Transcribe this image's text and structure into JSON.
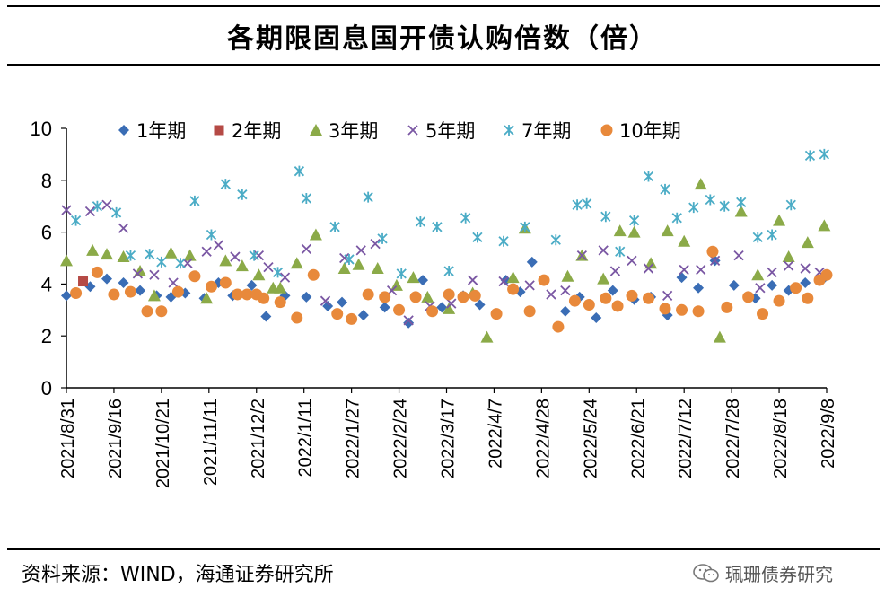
{
  "title": "各期限固息国开债认购倍数（倍）",
  "source": "资料来源：WIND，海通证券研究所",
  "watermark": "珮珊债券研究",
  "chart_data": {
    "type": "scatter",
    "title": "各期限固息国开债认购倍数（倍）",
    "xlabel": "",
    "ylabel": "",
    "ylim": [
      0,
      10
    ],
    "yticks": [
      0,
      2,
      4,
      6,
      8,
      10
    ],
    "x_ticks": [
      "2021/8/31",
      "2021/9/16",
      "2021/10/21",
      "2021/11/11",
      "2021/12/2",
      "2022/1/11",
      "2022/1/27",
      "2022/2/24",
      "2022/3/17",
      "2022/4/7",
      "2022/4/28",
      "2022/5/24",
      "2022/6/21",
      "2022/7/12",
      "2022/7/28",
      "2022/8/18",
      "2022/9/8"
    ],
    "legend_position": "top",
    "series": [
      {
        "name": "1年期",
        "marker": "diamond",
        "color": "#3A6DB5",
        "points": [
          [
            0.0,
            3.55
          ],
          [
            0.5,
            3.9
          ],
          [
            0.85,
            4.2
          ],
          [
            1.2,
            4.05
          ],
          [
            1.55,
            3.75
          ],
          [
            1.9,
            3.55
          ],
          [
            2.2,
            3.5
          ],
          [
            2.5,
            3.65
          ],
          [
            2.9,
            3.45
          ],
          [
            3.2,
            4.05
          ],
          [
            3.5,
            3.55
          ],
          [
            3.9,
            3.95
          ],
          [
            4.2,
            2.75
          ],
          [
            4.6,
            3.55
          ],
          [
            5.05,
            3.5
          ],
          [
            5.5,
            3.15
          ],
          [
            5.8,
            3.3
          ],
          [
            6.25,
            2.8
          ],
          [
            6.7,
            3.1
          ],
          [
            7.2,
            2.5
          ],
          [
            7.5,
            4.15
          ],
          [
            7.9,
            3.1
          ],
          [
            8.35,
            3.55
          ],
          [
            8.7,
            3.2
          ],
          [
            9.25,
            4.15
          ],
          [
            9.55,
            3.7
          ],
          [
            9.8,
            4.85
          ],
          [
            10.5,
            2.95
          ],
          [
            10.8,
            3.5
          ],
          [
            11.15,
            2.7
          ],
          [
            11.5,
            3.75
          ],
          [
            11.95,
            3.4
          ],
          [
            12.3,
            3.5
          ],
          [
            12.65,
            2.8
          ],
          [
            12.95,
            4.25
          ],
          [
            13.3,
            3.85
          ],
          [
            13.65,
            4.9
          ],
          [
            14.05,
            3.95
          ],
          [
            14.5,
            3.45
          ],
          [
            14.85,
            3.95
          ],
          [
            15.2,
            3.75
          ],
          [
            15.55,
            4.05
          ],
          [
            15.9,
            4.15
          ]
        ]
      },
      {
        "name": "2年期",
        "marker": "square",
        "color": "#B54A45",
        "points": [
          [
            0.35,
            4.1
          ]
        ]
      },
      {
        "name": "3年期",
        "marker": "triangle",
        "color": "#8BAA48",
        "points": [
          [
            0.0,
            4.9
          ],
          [
            0.55,
            5.3
          ],
          [
            0.85,
            5.15
          ],
          [
            1.2,
            5.05
          ],
          [
            1.55,
            4.5
          ],
          [
            1.85,
            3.55
          ],
          [
            2.2,
            5.2
          ],
          [
            2.6,
            5.1
          ],
          [
            2.95,
            3.45
          ],
          [
            3.35,
            4.9
          ],
          [
            3.7,
            4.7
          ],
          [
            4.05,
            4.35
          ],
          [
            4.35,
            3.85
          ],
          [
            4.5,
            3.85
          ],
          [
            4.85,
            4.8
          ],
          [
            5.25,
            5.9
          ],
          [
            5.85,
            4.6
          ],
          [
            6.15,
            4.75
          ],
          [
            6.55,
            4.6
          ],
          [
            6.95,
            3.95
          ],
          [
            7.3,
            4.25
          ],
          [
            7.6,
            3.5
          ],
          [
            8.05,
            3.05
          ],
          [
            8.55,
            3.65
          ],
          [
            8.85,
            1.95
          ],
          [
            9.4,
            4.25
          ],
          [
            9.65,
            6.15
          ],
          [
            10.55,
            4.3
          ],
          [
            10.85,
            5.1
          ],
          [
            11.3,
            4.2
          ],
          [
            11.65,
            6.05
          ],
          [
            11.95,
            6.0
          ],
          [
            12.3,
            4.8
          ],
          [
            12.65,
            6.05
          ],
          [
            13.0,
            5.65
          ],
          [
            13.35,
            7.85
          ],
          [
            13.75,
            1.95
          ],
          [
            14.2,
            6.8
          ],
          [
            14.55,
            4.35
          ],
          [
            15.0,
            6.45
          ],
          [
            15.2,
            5.05
          ],
          [
            15.6,
            5.6
          ],
          [
            15.95,
            6.25
          ]
        ]
      },
      {
        "name": "5年期",
        "marker": "cross",
        "color": "#7A57A3",
        "points": [
          [
            0.0,
            6.85
          ],
          [
            0.5,
            6.8
          ],
          [
            0.85,
            7.05
          ],
          [
            1.2,
            6.15
          ],
          [
            1.5,
            4.4
          ],
          [
            1.85,
            4.35
          ],
          [
            2.25,
            4.05
          ],
          [
            2.55,
            4.8
          ],
          [
            2.95,
            5.25
          ],
          [
            3.2,
            5.5
          ],
          [
            3.55,
            5.05
          ],
          [
            4.05,
            5.1
          ],
          [
            4.25,
            4.65
          ],
          [
            4.6,
            4.25
          ],
          [
            5.05,
            5.35
          ],
          [
            5.45,
            3.35
          ],
          [
            5.85,
            5.0
          ],
          [
            6.2,
            5.3
          ],
          [
            6.5,
            5.55
          ],
          [
            6.85,
            3.75
          ],
          [
            7.2,
            2.6
          ],
          [
            7.65,
            3.15
          ],
          [
            8.1,
            3.25
          ],
          [
            8.55,
            4.15
          ],
          [
            9.2,
            4.1
          ],
          [
            9.75,
            3.95
          ],
          [
            10.2,
            3.6
          ],
          [
            10.5,
            3.75
          ],
          [
            10.85,
            5.1
          ],
          [
            11.3,
            5.3
          ],
          [
            11.55,
            4.5
          ],
          [
            11.9,
            4.9
          ],
          [
            12.25,
            4.6
          ],
          [
            12.65,
            3.55
          ],
          [
            13.0,
            4.55
          ],
          [
            13.35,
            4.55
          ],
          [
            13.65,
            4.9
          ],
          [
            14.15,
            5.1
          ],
          [
            14.6,
            3.85
          ],
          [
            14.85,
            4.45
          ],
          [
            15.2,
            4.7
          ],
          [
            15.55,
            4.6
          ],
          [
            15.85,
            4.45
          ]
        ]
      },
      {
        "name": "7年期",
        "marker": "star",
        "color": "#4BACC6",
        "points": [
          [
            0.2,
            6.45
          ],
          [
            0.65,
            7.0
          ],
          [
            1.05,
            6.75
          ],
          [
            1.35,
            5.1
          ],
          [
            1.75,
            5.15
          ],
          [
            2.0,
            4.85
          ],
          [
            2.4,
            4.8
          ],
          [
            2.7,
            7.2
          ],
          [
            3.05,
            5.9
          ],
          [
            3.35,
            7.85
          ],
          [
            3.7,
            7.45
          ],
          [
            3.95,
            5.1
          ],
          [
            4.45,
            4.45
          ],
          [
            4.9,
            8.35
          ],
          [
            5.05,
            7.3
          ],
          [
            5.65,
            6.2
          ],
          [
            5.95,
            4.95
          ],
          [
            6.35,
            7.35
          ],
          [
            6.65,
            5.75
          ],
          [
            7.05,
            4.4
          ],
          [
            7.45,
            6.4
          ],
          [
            7.8,
            6.2
          ],
          [
            8.05,
            4.5
          ],
          [
            8.4,
            6.55
          ],
          [
            8.65,
            5.8
          ],
          [
            9.2,
            5.65
          ],
          [
            9.65,
            6.2
          ],
          [
            10.3,
            5.7
          ],
          [
            10.75,
            7.05
          ],
          [
            10.95,
            7.1
          ],
          [
            11.35,
            6.6
          ],
          [
            11.65,
            5.25
          ],
          [
            11.95,
            6.45
          ],
          [
            12.25,
            8.15
          ],
          [
            12.6,
            7.65
          ],
          [
            12.85,
            6.55
          ],
          [
            13.2,
            6.95
          ],
          [
            13.55,
            7.25
          ],
          [
            13.85,
            7.0
          ],
          [
            14.2,
            7.15
          ],
          [
            14.55,
            5.8
          ],
          [
            14.85,
            5.9
          ],
          [
            15.25,
            7.05
          ],
          [
            15.65,
            8.95
          ],
          [
            15.95,
            9.0
          ]
        ]
      },
      {
        "name": "10年期",
        "marker": "circle",
        "color": "#E8893B",
        "points": [
          [
            0.2,
            3.65
          ],
          [
            0.65,
            4.45
          ],
          [
            1.0,
            3.6
          ],
          [
            1.35,
            3.7
          ],
          [
            1.7,
            2.95
          ],
          [
            2.0,
            2.95
          ],
          [
            2.35,
            3.7
          ],
          [
            2.7,
            4.3
          ],
          [
            3.05,
            3.9
          ],
          [
            3.35,
            4.05
          ],
          [
            3.6,
            3.6
          ],
          [
            3.8,
            3.6
          ],
          [
            4.0,
            3.6
          ],
          [
            4.15,
            3.45
          ],
          [
            4.5,
            3.3
          ],
          [
            4.85,
            2.7
          ],
          [
            5.2,
            4.35
          ],
          [
            5.7,
            2.85
          ],
          [
            6.0,
            2.65
          ],
          [
            6.35,
            3.6
          ],
          [
            6.7,
            3.5
          ],
          [
            7.0,
            3.0
          ],
          [
            7.35,
            3.5
          ],
          [
            7.7,
            2.95
          ],
          [
            8.05,
            3.6
          ],
          [
            8.35,
            3.5
          ],
          [
            8.6,
            3.55
          ],
          [
            9.05,
            2.85
          ],
          [
            9.4,
            3.8
          ],
          [
            9.75,
            2.95
          ],
          [
            10.05,
            4.15
          ],
          [
            10.35,
            2.35
          ],
          [
            10.7,
            3.35
          ],
          [
            11.0,
            3.2
          ],
          [
            11.35,
            3.45
          ],
          [
            11.6,
            3.15
          ],
          [
            11.9,
            3.55
          ],
          [
            12.25,
            3.45
          ],
          [
            12.6,
            3.05
          ],
          [
            12.95,
            3.0
          ],
          [
            13.3,
            2.95
          ],
          [
            13.6,
            5.25
          ],
          [
            13.9,
            3.1
          ],
          [
            14.35,
            3.5
          ],
          [
            14.65,
            2.85
          ],
          [
            15.0,
            3.35
          ],
          [
            15.35,
            3.85
          ],
          [
            15.6,
            3.45
          ],
          [
            15.85,
            4.15
          ],
          [
            16.0,
            4.35
          ]
        ]
      }
    ]
  }
}
